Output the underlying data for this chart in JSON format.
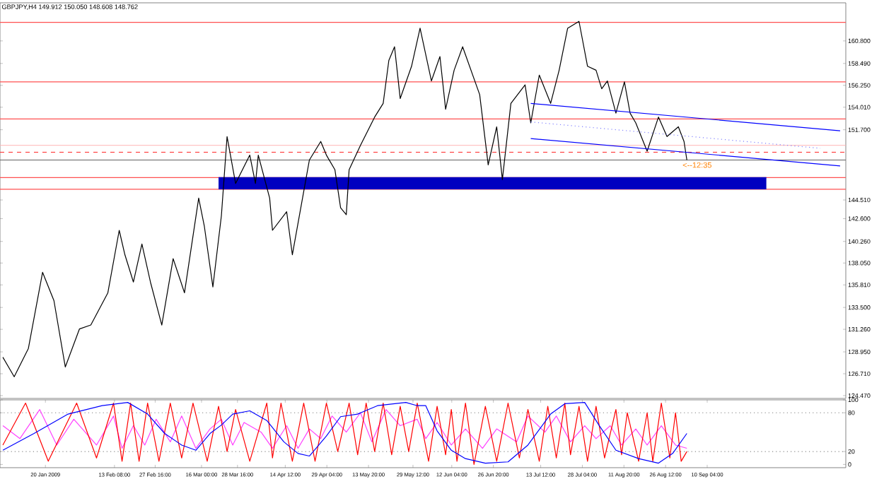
{
  "chart_data": [
    {
      "type": "line",
      "title": "GBPJPY,H4  149.912 150.050 148.608 148.762",
      "xlim": [
        "2009-01-04",
        "2009-10-29"
      ],
      "ylim": [
        124.18,
        164.7
      ],
      "yticks": [
        {
          "value": 124.47,
          "label": "124.470"
        },
        {
          "value": 126.71,
          "label": "126.710"
        },
        {
          "value": 128.95,
          "label": "128.950"
        },
        {
          "value": 131.26,
          "label": "131.260"
        },
        {
          "value": 133.5,
          "label": "133.500"
        },
        {
          "value": 135.81,
          "label": "135.810"
        },
        {
          "value": 138.05,
          "label": "138.050"
        },
        {
          "value": 140.26,
          "label": "140.260"
        },
        {
          "value": 142.6,
          "label": "142.600"
        },
        {
          "value": 144.51,
          "label": "144.510"
        },
        {
          "value": 151.7,
          "label": "151.700"
        },
        {
          "value": 154.01,
          "label": "154.010"
        },
        {
          "value": 156.25,
          "label": "156.250"
        },
        {
          "value": 158.49,
          "label": "158.490"
        },
        {
          "value": 160.8,
          "label": "160.800"
        }
      ],
      "tick_labels": "y",
      "series": [
        {
          "color": "#000000",
          "x": [
            "2009-01-05",
            "2009-01-09",
            "2009-01-14",
            "2009-01-19",
            "2009-01-23",
            "2009-01-27",
            "2009-02-01",
            "2009-02-05",
            "2009-02-11",
            "2009-02-15",
            "2009-02-17",
            "2009-02-20",
            "2009-02-23",
            "2009-02-26",
            "2009-03-02",
            "2009-03-06",
            "2009-03-10",
            "2009-03-15",
            "2009-03-17",
            "2009-03-20",
            "2009-03-23",
            "2009-03-25",
            "2009-03-28",
            "2009-04-02",
            "2009-04-04",
            "2009-04-05",
            "2009-04-09",
            "2009-04-10",
            "2009-04-15",
            "2009-04-17",
            "2009-04-23",
            "2009-04-27",
            "2009-04-29",
            "2009-05-02",
            "2009-05-04",
            "2009-05-06",
            "2009-05-07",
            "2009-05-11",
            "2009-05-16",
            "2009-05-19",
            "2009-05-21",
            "2009-05-23",
            "2009-05-25",
            "2009-05-29",
            "2009-06-01",
            "2009-06-05",
            "2009-06-08",
            "2009-06-10",
            "2009-06-13",
            "2009-06-16",
            "2009-06-22",
            "2009-06-25",
            "2009-06-28",
            "2009-06-30",
            "2009-07-03",
            "2009-07-08",
            "2009-07-10",
            "2009-07-13",
            "2009-07-17",
            "2009-07-20",
            "2009-07-23",
            "2009-07-27",
            "2009-07-30",
            "2009-08-02",
            "2009-08-04",
            "2009-08-06",
            "2009-08-09",
            "2009-08-12",
            "2009-08-14",
            "2009-08-16",
            "2009-08-20",
            "2009-08-24",
            "2009-08-27",
            "2009-08-31",
            "2009-09-02",
            "2009-09-03"
          ],
          "values": [
            128.4,
            126.4,
            129.3,
            137.1,
            134.2,
            127.4,
            131.3,
            131.7,
            135.0,
            141.4,
            138.9,
            136.1,
            140.0,
            136.1,
            131.7,
            138.5,
            135.0,
            144.7,
            141.8,
            135.6,
            142.9,
            151.0,
            146.2,
            149.1,
            146.2,
            149.1,
            144.7,
            141.4,
            143.3,
            138.9,
            148.6,
            150.5,
            149.1,
            147.6,
            143.7,
            143.0,
            147.6,
            150.1,
            153.0,
            154.4,
            158.8,
            160.2,
            154.9,
            158.2,
            162.1,
            156.7,
            159.2,
            153.8,
            157.8,
            160.2,
            155.3,
            148.1,
            152.0,
            146.6,
            154.4,
            156.3,
            152.4,
            157.3,
            154.4,
            157.8,
            162.1,
            162.8,
            158.2,
            157.8,
            155.9,
            156.7,
            153.4,
            156.6,
            153.4,
            152.4,
            149.5,
            153.0,
            151.0,
            152.0,
            150.5,
            148.6
          ]
        },
        {
          "color": "#0000ff",
          "x": [
            "2009-07-10",
            "2009-10-27"
          ],
          "values": [
            154.4,
            151.6
          ]
        },
        {
          "color": "#0000ff",
          "x": [
            "2009-07-10",
            "2009-10-27"
          ],
          "values": [
            150.8,
            148.0
          ]
        },
        {
          "color": "#8080ff",
          "line_style": "dotted",
          "x": [
            "2009-07-10",
            "2009-10-20"
          ],
          "values": [
            152.5,
            149.8
          ]
        },
        {
          "color": "#0000c0",
          "x": [
            "2009-03-22",
            "2009-10-01"
          ],
          "values": [
            146.8,
            146.8
          ],
          "lower": [
            145.6,
            145.6
          ],
          "upper": [
            146.8,
            146.8
          ]
        }
      ],
      "ref_lines": [
        {
          "axis": "y",
          "value": 162.7,
          "color": "#ff5050"
        },
        {
          "axis": "y",
          "value": 156.6,
          "color": "#ff5050"
        },
        {
          "axis": "y",
          "value": 152.8,
          "color": "#ff5050"
        },
        {
          "axis": "y",
          "value": 150.1,
          "color": "#ffb0b0"
        },
        {
          "axis": "y",
          "value": 149.4,
          "color": "#ff3030",
          "line_style": "dashed"
        },
        {
          "axis": "y",
          "value": 148.6,
          "color": "#606060"
        },
        {
          "axis": "y",
          "value": 146.8,
          "color": "#ff5050"
        },
        {
          "axis": "y",
          "value": 145.6,
          "color": "#ff5050"
        }
      ],
      "annotations": [
        "<--12:35"
      ]
    },
    {
      "type": "line",
      "xlim": [
        "2009-01-04",
        "2009-10-29"
      ],
      "ylim": [
        -5,
        100
      ],
      "yticks": [
        0,
        20,
        80,
        100
      ],
      "xticks": [
        {
          "value": "2009-01-20",
          "label": "20 Jan 2009"
        },
        {
          "value": "2009-02-13T08:00",
          "label": "13 Feb 08:00"
        },
        {
          "value": "2009-02-27T16:00",
          "label": "27 Feb 16:00"
        },
        {
          "value": "2009-03-16T00:00",
          "label": "16 Mar 00:00"
        },
        {
          "value": "2009-03-28T16:00",
          "label": "28 Mar 16:00"
        },
        {
          "value": "2009-04-14T12:00",
          "label": "14 Apr 12:00"
        },
        {
          "value": "2009-04-29T04:00",
          "label": "29 Apr 04:00"
        },
        {
          "value": "2009-05-13T20:00",
          "label": "13 May 20:00"
        },
        {
          "value": "2009-05-29T12:00",
          "label": "29 May 12:00"
        },
        {
          "value": "2009-06-12T04:00",
          "label": "12 Jun 04:00"
        },
        {
          "value": "2009-06-26T20:00",
          "label": "26 Jun 20:00"
        },
        {
          "value": "2009-07-13T12:00",
          "label": "13 Jul 12:00"
        },
        {
          "value": "2009-07-28T04:00",
          "label": "28 Jul 04:00"
        },
        {
          "value": "2009-08-11T20:00",
          "label": "11 Aug 20:00"
        },
        {
          "value": "2009-08-26T12:00",
          "label": "26 Aug 12:00"
        },
        {
          "value": "2009-09-10T04:00",
          "label": "10 Sep 04:00"
        }
      ],
      "series": [
        {
          "color": "#ff40ff",
          "x": [
            "2009-01-05",
            "2009-01-11",
            "2009-01-18",
            "2009-01-24",
            "2009-01-30",
            "2009-02-07",
            "2009-02-13",
            "2009-02-16",
            "2009-02-20",
            "2009-02-24",
            "2009-02-28",
            "2009-03-05",
            "2009-03-09",
            "2009-03-14",
            "2009-03-19",
            "2009-03-23",
            "2009-03-27",
            "2009-03-31",
            "2009-04-06",
            "2009-04-10",
            "2009-04-15",
            "2009-04-19",
            "2009-04-23",
            "2009-04-27",
            "2009-05-01",
            "2009-05-06",
            "2009-05-11",
            "2009-05-15",
            "2009-05-20",
            "2009-05-25",
            "2009-05-31",
            "2009-06-03",
            "2009-06-07",
            "2009-06-12",
            "2009-06-17",
            "2009-06-23",
            "2009-06-28",
            "2009-07-05",
            "2009-07-09",
            "2009-07-15",
            "2009-07-19",
            "2009-07-24",
            "2009-07-29",
            "2009-08-02",
            "2009-08-07",
            "2009-08-11",
            "2009-08-16",
            "2009-08-20",
            "2009-08-25",
            "2009-08-30",
            "2009-09-03"
          ],
          "values": [
            60,
            40,
            85,
            30,
            70,
            30,
            75,
            25,
            60,
            30,
            70,
            35,
            75,
            25,
            55,
            70,
            30,
            65,
            50,
            25,
            60,
            25,
            55,
            40,
            75,
            50,
            80,
            35,
            85,
            60,
            70,
            40,
            65,
            30,
            55,
            25,
            55,
            35,
            75,
            50,
            75,
            35,
            60,
            40,
            60,
            30,
            55,
            30,
            60,
            30,
            25
          ]
        },
        {
          "color": "#ff0000",
          "x": [
            "2009-01-05",
            "2009-01-13",
            "2009-01-21",
            "2009-01-31",
            "2009-02-07",
            "2009-02-13",
            "2009-02-16",
            "2009-02-19",
            "2009-02-22",
            "2009-02-25",
            "2009-03-01",
            "2009-03-05",
            "2009-03-09",
            "2009-03-13",
            "2009-03-18",
            "2009-03-22",
            "2009-03-25",
            "2009-03-28",
            "2009-04-02",
            "2009-04-08",
            "2009-04-10",
            "2009-04-13",
            "2009-04-17",
            "2009-04-21",
            "2009-04-25",
            "2009-04-29",
            "2009-05-03",
            "2009-05-07",
            "2009-05-10",
            "2009-05-13",
            "2009-05-16",
            "2009-05-19",
            "2009-05-22",
            "2009-05-25",
            "2009-05-28",
            "2009-05-31",
            "2009-06-04",
            "2009-06-07",
            "2009-06-10",
            "2009-06-12",
            "2009-06-14",
            "2009-06-17",
            "2009-06-20",
            "2009-06-24",
            "2009-06-28",
            "2009-07-02",
            "2009-07-06",
            "2009-07-09",
            "2009-07-13",
            "2009-07-16",
            "2009-07-19",
            "2009-07-22",
            "2009-07-24",
            "2009-07-27",
            "2009-07-30",
            "2009-08-02",
            "2009-08-05",
            "2009-08-09",
            "2009-08-11",
            "2009-08-13",
            "2009-08-17",
            "2009-08-20",
            "2009-08-22",
            "2009-08-25",
            "2009-08-28",
            "2009-08-30",
            "2009-09-01",
            "2009-09-03"
          ],
          "values": [
            30,
            95,
            5,
            95,
            10,
            95,
            5,
            95,
            5,
            95,
            5,
            95,
            10,
            95,
            5,
            90,
            20,
            85,
            5,
            95,
            10,
            95,
            5,
            95,
            5,
            95,
            20,
            95,
            15,
            95,
            20,
            95,
            15,
            90,
            20,
            95,
            5,
            90,
            15,
            85,
            5,
            95,
            0,
            90,
            5,
            95,
            10,
            85,
            5,
            90,
            10,
            95,
            15,
            90,
            5,
            90,
            10,
            85,
            15,
            80,
            5,
            80,
            5,
            95,
            10,
            80,
            5,
            20
          ]
        },
        {
          "color": "#0000ff",
          "x": [
            "2009-01-05",
            "2009-01-16",
            "2009-01-28",
            "2009-02-09",
            "2009-02-18",
            "2009-02-25",
            "2009-03-03",
            "2009-03-09",
            "2009-03-14",
            "2009-03-19",
            "2009-03-23",
            "2009-03-27",
            "2009-04-02",
            "2009-04-08",
            "2009-04-14",
            "2009-04-19",
            "2009-04-23",
            "2009-04-29",
            "2009-05-04",
            "2009-05-10",
            "2009-05-17",
            "2009-05-27",
            "2009-05-31",
            "2009-06-03",
            "2009-06-07",
            "2009-06-12",
            "2009-06-17",
            "2009-06-24",
            "2009-07-02",
            "2009-07-09",
            "2009-07-17",
            "2009-07-22",
            "2009-07-29",
            "2009-08-03",
            "2009-08-09",
            "2009-08-17",
            "2009-08-24",
            "2009-08-29",
            "2009-09-03"
          ],
          "values": [
            22,
            48,
            78,
            91,
            96,
            78,
            48,
            30,
            22,
            48,
            61,
            78,
            83,
            68,
            35,
            17,
            13,
            44,
            74,
            78,
            91,
            96,
            91,
            91,
            52,
            22,
            9,
            2,
            4,
            30,
            78,
            94,
            96,
            61,
            22,
            9,
            2,
            17,
            48
          ]
        }
      ],
      "ref_lines": [
        {
          "axis": "y",
          "value": 20,
          "color": "#808080",
          "line_style": "dotted"
        },
        {
          "axis": "y",
          "value": 80,
          "color": "#808080",
          "line_style": "dotted"
        }
      ]
    }
  ]
}
